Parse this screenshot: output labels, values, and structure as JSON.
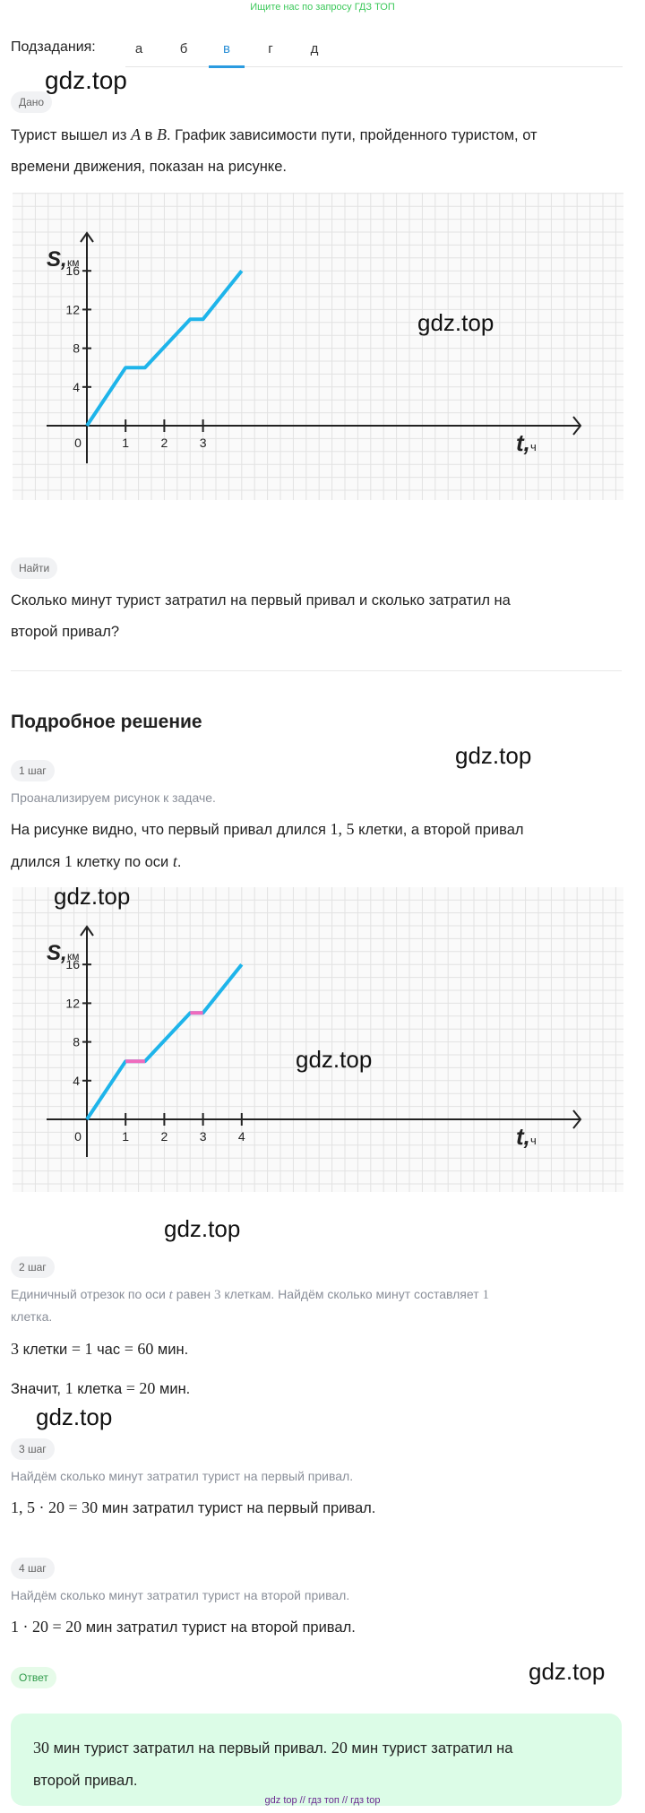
{
  "banner": "Ищите нас по запросу ГДЗ ТОП",
  "tabs": {
    "label": "Подзадания:",
    "items": [
      "а",
      "б",
      "в",
      "г",
      "д"
    ],
    "active": 2
  },
  "watermark": "gdz.top",
  "given": {
    "badge": "Дано",
    "line1_a": "Турист вышел из ",
    "A": "A",
    "line1_b": " в ",
    "B": "B",
    "line1_c": ". График зависимости пути, пройденного туристом, от",
    "line2": "времени движения, показан на рисунке."
  },
  "find": {
    "badge": "Найти",
    "line1": "Сколько минут турист затратил на первый привал и сколько затратил на",
    "line2": "второй привал?"
  },
  "solution": {
    "title": "Подробное решение",
    "step1": {
      "badge": "1 шаг",
      "hint": "Проанализируем рисунок к задаче.",
      "l1a": "На рисунке видно, что первый привал длился ",
      "l1n": "1, 5",
      "l1b": " клетки, а второй привал",
      "l2a": "длился ",
      "l2n": "1",
      "l2b": " клетку по оси ",
      "l2t": "t",
      "l2c": "."
    },
    "step2": {
      "badge": "2 шаг",
      "hint_a": "Единичный отрезок по оси ",
      "hint_t": "t",
      "hint_b": " равен ",
      "hint_n": "3",
      "hint_c": " клеткам. Найдём сколько минут составляет ",
      "hint_n2": "1",
      "hint_d": "клетка.",
      "eq1_a": "3",
      "eq1_b": " клетки ",
      "eq1_c": "= 1",
      "eq1_d": " час ",
      "eq1_e": "= 60",
      "eq1_f": " мин.",
      "eq2_a": "Значит, ",
      "eq2_b": "1",
      "eq2_c": " клетка ",
      "eq2_d": "= 20",
      "eq2_e": " мин."
    },
    "step3": {
      "badge": "3 шаг",
      "hint": "Найдём сколько минут затратил турист на первый привал.",
      "eq": "1, 5 · 20 = 30",
      "text": " мин затратил турист на первый привал."
    },
    "step4": {
      "badge": "4 шаг",
      "hint": "Найдём сколько минут затратил турист на второй привал.",
      "eq": "1 · 20 = 20",
      "text": " мин затратил турист на второй привал."
    }
  },
  "answer": {
    "badge": "Ответ",
    "n1": "30",
    "t1": " мин турист затратил на первый привал. ",
    "n2": "20",
    "t2": " мин турист затратил на",
    "line2": "второй привал."
  },
  "footer": "gdz top  //  гдз топ  //  гдз top",
  "colors": {
    "line": "#1eb4ea",
    "rest": "#f06bbd",
    "accent": "#2a9be0",
    "answer_bg": "#dcfce7"
  },
  "chart_data": [
    {
      "type": "line",
      "ylabel_var": "S",
      "ylabel_unit": "км",
      "xlabel_var": "t",
      "xlabel_unit": "ч",
      "xticks": [
        "0",
        "1",
        "2",
        "3"
      ],
      "yticks": [
        "4",
        "8",
        "12",
        "16"
      ],
      "points": [
        [
          0,
          0
        ],
        [
          1,
          6
        ],
        [
          1.5,
          6
        ],
        [
          2.67,
          11
        ],
        [
          3,
          11
        ],
        [
          4,
          16
        ]
      ],
      "grid": true
    },
    {
      "type": "line",
      "ylabel_var": "S",
      "ylabel_unit": "км",
      "xlabel_var": "t",
      "xlabel_unit": "ч",
      "xticks": [
        "0",
        "1",
        "2",
        "3",
        "4"
      ],
      "yticks": [
        "4",
        "8",
        "12",
        "16"
      ],
      "points": [
        [
          0,
          0
        ],
        [
          1,
          6
        ],
        [
          1.5,
          6
        ],
        [
          2.67,
          11
        ],
        [
          3,
          11
        ],
        [
          4,
          16
        ]
      ],
      "highlight": [
        [
          [
            1,
            6
          ],
          [
            1.5,
            6
          ]
        ],
        [
          [
            2.67,
            11
          ],
          [
            3,
            11
          ]
        ]
      ],
      "grid": true
    }
  ]
}
